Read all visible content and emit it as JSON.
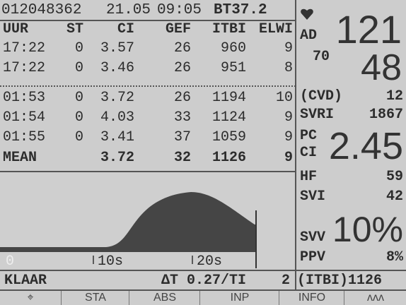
{
  "header": {
    "patient": "012048362",
    "date": "21.05",
    "time": "09:05",
    "temp": "BT37.2"
  },
  "table": {
    "columns": [
      "UUR",
      "ST",
      "CI",
      "GEF",
      "ITBI",
      "ELWI"
    ],
    "rows": [
      [
        "17:22",
        "0",
        "3.57",
        "26",
        "960",
        "9"
      ],
      [
        "17:22",
        "0",
        "3.46",
        "26",
        "951",
        "8"
      ],
      [
        "01:53",
        "0",
        "3.72",
        "26",
        "1194",
        "10"
      ],
      [
        "01:54",
        "0",
        "4.03",
        "33",
        "1124",
        "9"
      ],
      [
        "01:55",
        "0",
        "3.41",
        "37",
        "1059",
        "9"
      ]
    ],
    "mean": {
      "label": "MEAN",
      "ci": "3.72",
      "gef": "32",
      "itbi": "1126",
      "elwi": "9"
    }
  },
  "curve": {
    "ticks": [
      "0",
      "10s",
      "20s"
    ]
  },
  "status": {
    "state": "KLAAR",
    "delta": "ΔT 0.27/TI",
    "count": "2"
  },
  "vitals": {
    "ad_label": "AD",
    "sys": "121",
    "dia_label": "70",
    "dia": "48",
    "cvd_label": "(CVD)",
    "cvd": "12",
    "svri_label": "SVRI",
    "svri": "1867",
    "pc_label": "PC",
    "ci_label": "CI",
    "ci": "2.45",
    "hf_label": "HF",
    "hf": "59",
    "svi_label": "SVI",
    "svi": "42",
    "svv_label": "SVV",
    "svv": "10%",
    "ppv_label": "PPV",
    "ppv": "8%",
    "itbi": "(ITBI)1126"
  },
  "menu": [
    "STA",
    "ABS",
    "INP",
    "INFO"
  ]
}
